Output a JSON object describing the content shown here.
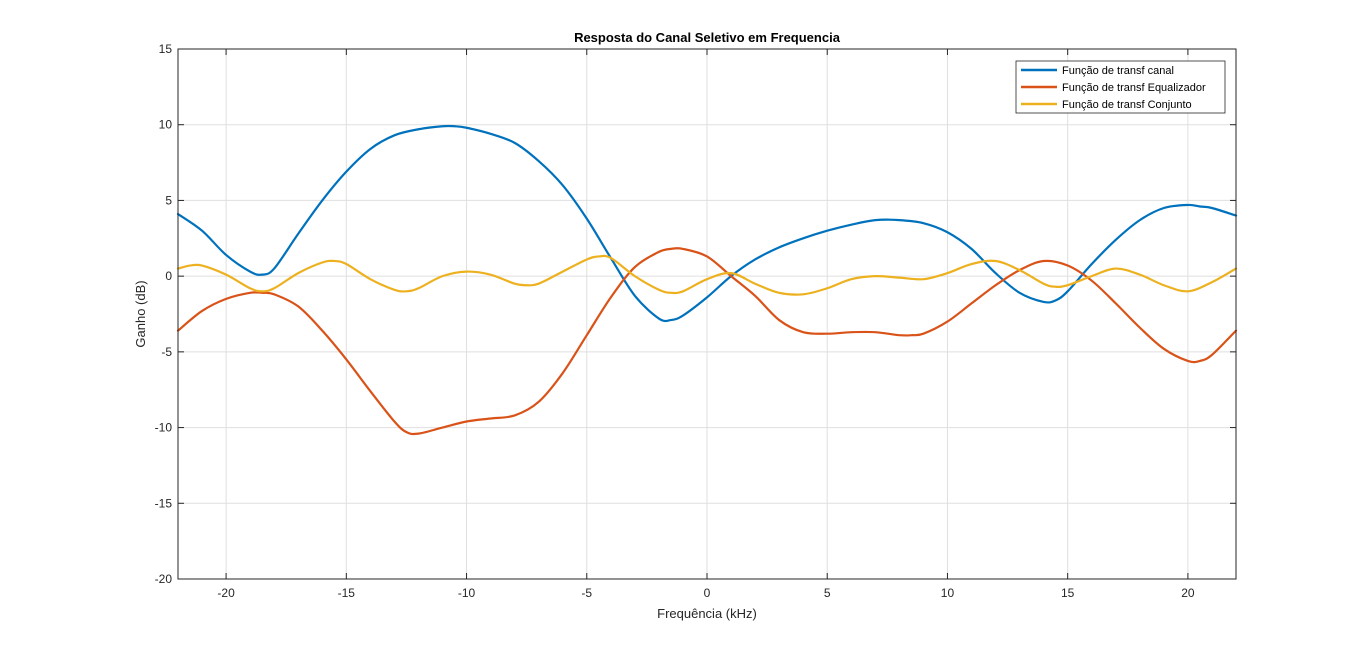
{
  "chart_data": {
    "type": "line",
    "title": "Resposta do Canal Seletivo em Frequencia",
    "xlabel": "Frequência (kHz)",
    "ylabel": "Ganho (dB)",
    "xlim": [
      -22,
      22
    ],
    "ylim": [
      -20,
      15
    ],
    "xticks": [
      -20,
      -15,
      -10,
      -5,
      0,
      5,
      10,
      15,
      20
    ],
    "yticks": [
      -20,
      -15,
      -10,
      -5,
      0,
      5,
      10,
      15
    ],
    "grid": true,
    "legend_location": "top-right",
    "series": [
      {
        "name": "Função de transf canal",
        "color": "#0072BD",
        "x": [
          -22,
          -21,
          -20,
          -19,
          -18.5,
          -18,
          -17,
          -16,
          -15,
          -14,
          -13,
          -12,
          -11,
          -10.5,
          -10,
          -9,
          -8,
          -7,
          -6,
          -5,
          -4,
          -3,
          -2,
          -1.5,
          -1,
          0,
          1,
          2,
          3,
          4,
          5,
          6,
          7,
          8,
          9,
          10,
          11,
          12,
          13,
          14,
          14.5,
          15,
          16,
          17,
          18,
          19,
          20,
          20.5,
          21,
          22
        ],
        "y": [
          4.1,
          3.0,
          1.4,
          0.3,
          0.1,
          0.5,
          2.8,
          5.0,
          6.9,
          8.4,
          9.3,
          9.7,
          9.9,
          9.9,
          9.8,
          9.4,
          8.8,
          7.6,
          6.0,
          3.8,
          1.2,
          -1.3,
          -2.8,
          -2.9,
          -2.6,
          -1.4,
          0.0,
          1.1,
          1.9,
          2.5,
          3.0,
          3.4,
          3.7,
          3.7,
          3.5,
          2.9,
          1.8,
          0.2,
          -1.1,
          -1.7,
          -1.6,
          -1.0,
          0.8,
          2.4,
          3.7,
          4.5,
          4.7,
          4.6,
          4.5,
          4.0
        ]
      },
      {
        "name": "Função de transf Equalizador",
        "color": "#D95319",
        "x": [
          -22,
          -21,
          -20,
          -19,
          -18.5,
          -18,
          -17,
          -16,
          -15,
          -14,
          -13,
          -12.5,
          -12,
          -11,
          -10,
          -9,
          -8,
          -7,
          -6,
          -5,
          -4,
          -3,
          -2,
          -1.5,
          -1,
          0,
          1,
          2,
          3,
          4,
          5,
          6,
          7,
          8,
          8.5,
          9,
          10,
          11,
          12,
          13,
          14,
          15,
          16,
          17,
          18,
          19,
          20,
          20.5,
          21,
          22
        ],
        "y": [
          -3.6,
          -2.3,
          -1.5,
          -1.1,
          -1.1,
          -1.2,
          -2.0,
          -3.6,
          -5.5,
          -7.6,
          -9.6,
          -10.3,
          -10.4,
          -10.0,
          -9.6,
          -9.4,
          -9.2,
          -8.3,
          -6.4,
          -3.9,
          -1.4,
          0.6,
          1.6,
          1.8,
          1.8,
          1.3,
          0.0,
          -1.3,
          -2.9,
          -3.7,
          -3.8,
          -3.7,
          -3.7,
          -3.9,
          -3.9,
          -3.8,
          -3.0,
          -1.8,
          -0.6,
          0.4,
          1.0,
          0.7,
          -0.3,
          -1.8,
          -3.4,
          -4.8,
          -5.6,
          -5.6,
          -5.2,
          -3.6
        ]
      },
      {
        "name": "Função de transf Conjunto",
        "color": "#EDB120",
        "x": [
          -22,
          -21.5,
          -21,
          -20,
          -19,
          -18.5,
          -18,
          -17,
          -16,
          -15.5,
          -15,
          -14,
          -13,
          -12.5,
          -12,
          -11,
          -10,
          -9,
          -8,
          -7.5,
          -7,
          -6,
          -5,
          -4.5,
          -4,
          -3,
          -2,
          -1.5,
          -1,
          0,
          1,
          2,
          3,
          4,
          5,
          6,
          7,
          8,
          9,
          10,
          11,
          12,
          13,
          14,
          14.5,
          15,
          16,
          17,
          18,
          19,
          20,
          21,
          22
        ],
        "y": [
          0.5,
          0.7,
          0.7,
          0.1,
          -0.8,
          -1.0,
          -0.8,
          0.2,
          0.9,
          1.0,
          0.8,
          -0.2,
          -0.9,
          -1.0,
          -0.8,
          0.0,
          0.3,
          0.1,
          -0.5,
          -0.6,
          -0.5,
          0.3,
          1.1,
          1.3,
          1.2,
          0.0,
          -0.9,
          -1.1,
          -1.0,
          -0.2,
          0.2,
          -0.5,
          -1.1,
          -1.2,
          -0.8,
          -0.2,
          0.0,
          -0.1,
          -0.2,
          0.2,
          0.8,
          1.0,
          0.4,
          -0.5,
          -0.7,
          -0.6,
          0.0,
          0.5,
          0.1,
          -0.6,
          -1.0,
          -0.4,
          0.5
        ]
      }
    ]
  }
}
